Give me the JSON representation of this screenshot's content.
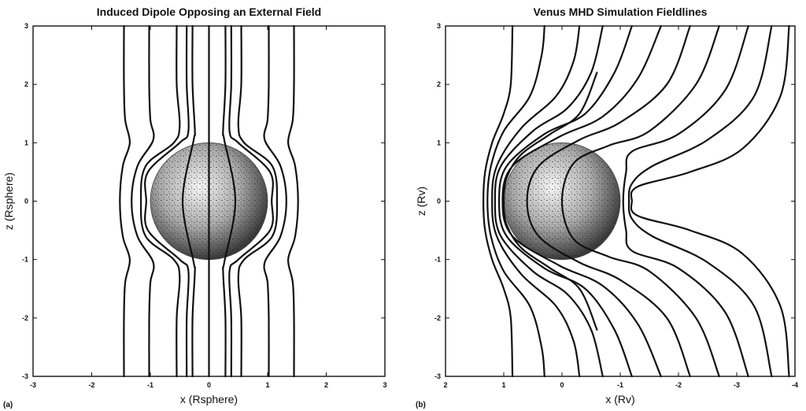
{
  "chart_data": [
    {
      "panel_tag": "(a)",
      "type": "line",
      "title": "Induced Dipole Opposing an External Field",
      "xlabel": "x (Rsphere)",
      "ylabel": "z (Rsphere)",
      "xlim": [
        -3,
        3
      ],
      "ylim": [
        -3,
        3
      ],
      "x_reversed": false,
      "xticks": [
        -3,
        -2,
        -1,
        0,
        1,
        2,
        3
      ],
      "yticks": [
        -3,
        -2,
        -1,
        0,
        1,
        2,
        3
      ],
      "grid": false,
      "sphere": {
        "center": [
          0,
          0
        ],
        "radius": 1
      },
      "series": [
        {
          "points": [
            [
              -1.45,
              3
            ],
            [
              -1.45,
              2
            ],
            [
              -1.43,
              1.4
            ],
            [
              -1.35,
              1
            ],
            [
              -1.47,
              0.6
            ],
            [
              -1.52,
              0
            ],
            [
              -1.47,
              -0.6
            ],
            [
              -1.35,
              -1
            ],
            [
              -1.43,
              -1.4
            ],
            [
              -1.45,
              -2
            ],
            [
              -1.45,
              -3
            ]
          ]
        },
        {
          "points": [
            [
              -1.02,
              3
            ],
            [
              -1.02,
              2
            ],
            [
              -1.0,
              1.4
            ],
            [
              -0.95,
              1.05
            ],
            [
              -1.22,
              0.6
            ],
            [
              -1.32,
              0
            ],
            [
              -1.22,
              -0.6
            ],
            [
              -0.95,
              -1.05
            ],
            [
              -1.0,
              -1.4
            ],
            [
              -1.02,
              -2
            ],
            [
              -1.02,
              -3
            ]
          ]
        },
        {
          "points": [
            [
              -0.55,
              3
            ],
            [
              -0.55,
              2
            ],
            [
              -0.5,
              1.3
            ],
            [
              -0.6,
              1.0
            ],
            [
              -1.08,
              0.6
            ],
            [
              -1.16,
              0
            ],
            [
              -1.08,
              -0.6
            ],
            [
              -0.6,
              -1.0
            ],
            [
              -0.5,
              -1.3
            ],
            [
              -0.55,
              -2
            ],
            [
              -0.55,
              -3
            ]
          ]
        },
        {
          "points": [
            [
              -0.38,
              3
            ],
            [
              -0.38,
              2
            ],
            [
              -0.35,
              1.2
            ],
            [
              -0.5,
              1.0
            ],
            [
              -1.04,
              0.5
            ],
            [
              -1.07,
              0
            ],
            [
              -1.04,
              -0.5
            ],
            [
              -0.5,
              -1.0
            ],
            [
              -0.35,
              -1.2
            ],
            [
              -0.38,
              -2
            ],
            [
              -0.38,
              -3
            ]
          ]
        },
        {
          "points": [
            [
              -0.28,
              3
            ],
            [
              -0.28,
              2
            ],
            [
              -0.24,
              1.2
            ],
            [
              -0.26,
              1.05
            ],
            [
              -0.45,
              0
            ],
            [
              -0.26,
              -1.05
            ],
            [
              -0.24,
              -1.2
            ],
            [
              -0.28,
              -2
            ],
            [
              -0.28,
              -3
            ]
          ]
        },
        {
          "points": [
            [
              0.0,
              3
            ],
            [
              0.0,
              -3
            ]
          ]
        },
        {
          "points": [
            [
              0.28,
              3
            ],
            [
              0.28,
              2
            ],
            [
              0.24,
              1.2
            ],
            [
              0.26,
              1.05
            ],
            [
              0.45,
              0
            ],
            [
              0.26,
              -1.05
            ],
            [
              0.24,
              -1.2
            ],
            [
              0.28,
              -2
            ],
            [
              0.28,
              -3
            ]
          ]
        },
        {
          "points": [
            [
              0.38,
              3
            ],
            [
              0.38,
              2
            ],
            [
              0.35,
              1.2
            ],
            [
              0.5,
              1.0
            ],
            [
              1.04,
              0.5
            ],
            [
              1.07,
              0
            ],
            [
              1.04,
              -0.5
            ],
            [
              0.5,
              -1.0
            ],
            [
              0.35,
              -1.2
            ],
            [
              0.38,
              -2
            ],
            [
              0.38,
              -3
            ]
          ]
        },
        {
          "points": [
            [
              0.55,
              3
            ],
            [
              0.55,
              2
            ],
            [
              0.5,
              1.3
            ],
            [
              0.6,
              1.0
            ],
            [
              1.08,
              0.6
            ],
            [
              1.16,
              0
            ],
            [
              1.08,
              -0.6
            ],
            [
              0.6,
              -1.0
            ],
            [
              0.5,
              -1.3
            ],
            [
              0.55,
              -2
            ],
            [
              0.55,
              -3
            ]
          ]
        },
        {
          "points": [
            [
              1.02,
              3
            ],
            [
              1.02,
              2
            ],
            [
              1.0,
              1.4
            ],
            [
              0.95,
              1.05
            ],
            [
              1.22,
              0.6
            ],
            [
              1.32,
              0
            ],
            [
              1.22,
              -0.6
            ],
            [
              0.95,
              -1.05
            ],
            [
              1.0,
              -1.4
            ],
            [
              1.02,
              -2
            ],
            [
              1.02,
              -3
            ]
          ]
        },
        {
          "points": [
            [
              1.45,
              3
            ],
            [
              1.45,
              2
            ],
            [
              1.43,
              1.4
            ],
            [
              1.35,
              1
            ],
            [
              1.47,
              0.6
            ],
            [
              1.52,
              0
            ],
            [
              1.47,
              -0.6
            ],
            [
              1.35,
              -1
            ],
            [
              1.43,
              -1.4
            ],
            [
              1.45,
              -2
            ],
            [
              1.45,
              -3
            ]
          ]
        }
      ]
    },
    {
      "panel_tag": "(b)",
      "type": "line",
      "title": "Venus MHD Simulation Fieldlines",
      "xlabel": "x (Rv)",
      "ylabel": "z (Rv)",
      "xlim": [
        2,
        -4
      ],
      "ylim": [
        -3,
        3
      ],
      "x_reversed": true,
      "xticks": [
        2,
        1,
        0,
        -1,
        -2,
        -3,
        -4
      ],
      "yticks": [
        -3,
        -2,
        -1,
        0,
        1,
        2,
        3
      ],
      "grid": false,
      "sphere": {
        "center": [
          0,
          0
        ],
        "radius": 1
      },
      "series": [
        {
          "points": [
            [
              0.85,
              3
            ],
            [
              0.88,
              2
            ],
            [
              1.0,
              1.5
            ],
            [
              1.2,
              1.0
            ],
            [
              1.32,
              0.5
            ],
            [
              1.35,
              0
            ],
            [
              1.32,
              -0.5
            ],
            [
              1.2,
              -1.0
            ],
            [
              1.0,
              -1.5
            ],
            [
              0.88,
              -2
            ],
            [
              0.85,
              -3
            ]
          ]
        },
        {
          "points": [
            [
              0.3,
              3
            ],
            [
              0.35,
              2.5
            ],
            [
              0.55,
              1.8
            ],
            [
              1.0,
              1.2
            ],
            [
              1.22,
              0.6
            ],
            [
              1.28,
              0
            ],
            [
              1.22,
              -0.6
            ],
            [
              1.0,
              -1.2
            ],
            [
              0.55,
              -1.8
            ],
            [
              0.35,
              -2.5
            ],
            [
              0.3,
              -3
            ]
          ]
        },
        {
          "points": [
            [
              -0.3,
              3
            ],
            [
              -0.2,
              2.4
            ],
            [
              0.1,
              1.8
            ],
            [
              0.7,
              1.25
            ],
            [
              1.12,
              0.6
            ],
            [
              1.2,
              0
            ],
            [
              1.12,
              -0.6
            ],
            [
              0.7,
              -1.25
            ],
            [
              0.1,
              -1.8
            ],
            [
              -0.2,
              -2.4
            ],
            [
              -0.3,
              -3
            ]
          ]
        },
        {
          "points": [
            [
              -0.7,
              3
            ],
            [
              -0.5,
              2.2
            ],
            [
              -0.1,
              1.6
            ],
            [
              0.5,
              1.2
            ],
            [
              1.05,
              0.6
            ],
            [
              1.15,
              0
            ],
            [
              1.05,
              -0.6
            ],
            [
              0.5,
              -1.2
            ],
            [
              -0.1,
              -1.6
            ],
            [
              -0.5,
              -2.2
            ],
            [
              -0.7,
              -3
            ]
          ]
        },
        {
          "points": [
            [
              -1.2,
              3
            ],
            [
              -0.9,
              2.2
            ],
            [
              -0.4,
              1.5
            ],
            [
              0.3,
              1.15
            ],
            [
              0.95,
              0.6
            ],
            [
              1.08,
              0
            ],
            [
              0.95,
              -0.6
            ],
            [
              0.3,
              -1.15
            ],
            [
              -0.4,
              -1.5
            ],
            [
              -0.9,
              -2.2
            ],
            [
              -1.2,
              -3
            ]
          ]
        },
        {
          "points": [
            [
              -1.7,
              3
            ],
            [
              -1.3,
              2.1
            ],
            [
              -0.7,
              1.45
            ],
            [
              0.05,
              1.1
            ],
            [
              0.85,
              0.6
            ],
            [
              1.02,
              0
            ],
            [
              0.85,
              -0.6
            ],
            [
              0.05,
              -1.1
            ],
            [
              -0.7,
              -1.45
            ],
            [
              -1.3,
              -2.1
            ],
            [
              -1.7,
              -3
            ]
          ]
        },
        {
          "points": [
            [
              -2.2,
              3
            ],
            [
              -1.8,
              2.0
            ],
            [
              -1.0,
              1.35
            ],
            [
              -0.3,
              1.05
            ],
            [
              0.4,
              0.6
            ],
            [
              0.6,
              0
            ],
            [
              0.4,
              -0.6
            ],
            [
              -0.3,
              -1.05
            ],
            [
              -1.0,
              -1.35
            ],
            [
              -1.8,
              -2.0
            ],
            [
              -2.2,
              -3
            ]
          ]
        },
        {
          "points": [
            [
              -2.7,
              3
            ],
            [
              -2.3,
              2.0
            ],
            [
              -1.5,
              1.2
            ],
            [
              -0.8,
              0.95
            ],
            [
              -0.2,
              0.65
            ],
            [
              0.0,
              0
            ],
            [
              -0.2,
              -0.65
            ],
            [
              -0.8,
              -0.95
            ],
            [
              -1.5,
              -1.2
            ],
            [
              -2.3,
              -2.0
            ],
            [
              -2.7,
              -3
            ]
          ]
        },
        {
          "points": [
            [
              -3.2,
              3
            ],
            [
              -2.8,
              1.9
            ],
            [
              -2.0,
              1.15
            ],
            [
              -1.2,
              0.85
            ],
            [
              -1.1,
              0.5
            ],
            [
              -1.05,
              0
            ],
            [
              -1.1,
              -0.5
            ],
            [
              -1.2,
              -0.85
            ],
            [
              -2.0,
              -1.15
            ],
            [
              -2.8,
              -1.9
            ],
            [
              -3.2,
              -3
            ]
          ]
        },
        {
          "points": [
            [
              -3.6,
              3
            ],
            [
              -3.3,
              1.8
            ],
            [
              -2.5,
              1.05
            ],
            [
              -1.55,
              0.6
            ],
            [
              -1.2,
              0.3
            ],
            [
              -1.15,
              0
            ],
            [
              -1.2,
              -0.3
            ],
            [
              -1.55,
              -0.6
            ],
            [
              -2.5,
              -1.05
            ],
            [
              -3.3,
              -1.8
            ],
            [
              -3.6,
              -3
            ]
          ]
        },
        {
          "points": [
            [
              -3.9,
              3
            ],
            [
              -3.75,
              1.8
            ],
            [
              -3.1,
              0.9
            ],
            [
              -2.2,
              0.5
            ],
            [
              -1.3,
              0.25
            ],
            [
              -1.2,
              0
            ],
            [
              -1.3,
              -0.25
            ],
            [
              -2.2,
              -0.5
            ],
            [
              -3.1,
              -0.9
            ],
            [
              -3.75,
              -1.8
            ],
            [
              -3.9,
              -3
            ]
          ]
        },
        {
          "points": [
            [
              -0.6,
              2.2
            ],
            [
              -0.3,
              1.5
            ],
            [
              0.2,
              1.15
            ],
            [
              0.7,
              0.8
            ],
            [
              0.95,
              0.4
            ],
            [
              1.0,
              0
            ],
            [
              0.95,
              -0.4
            ],
            [
              0.7,
              -0.8
            ],
            [
              0.2,
              -1.15
            ],
            [
              -0.3,
              -1.5
            ],
            [
              -0.6,
              -2.2
            ]
          ]
        }
      ]
    }
  ]
}
